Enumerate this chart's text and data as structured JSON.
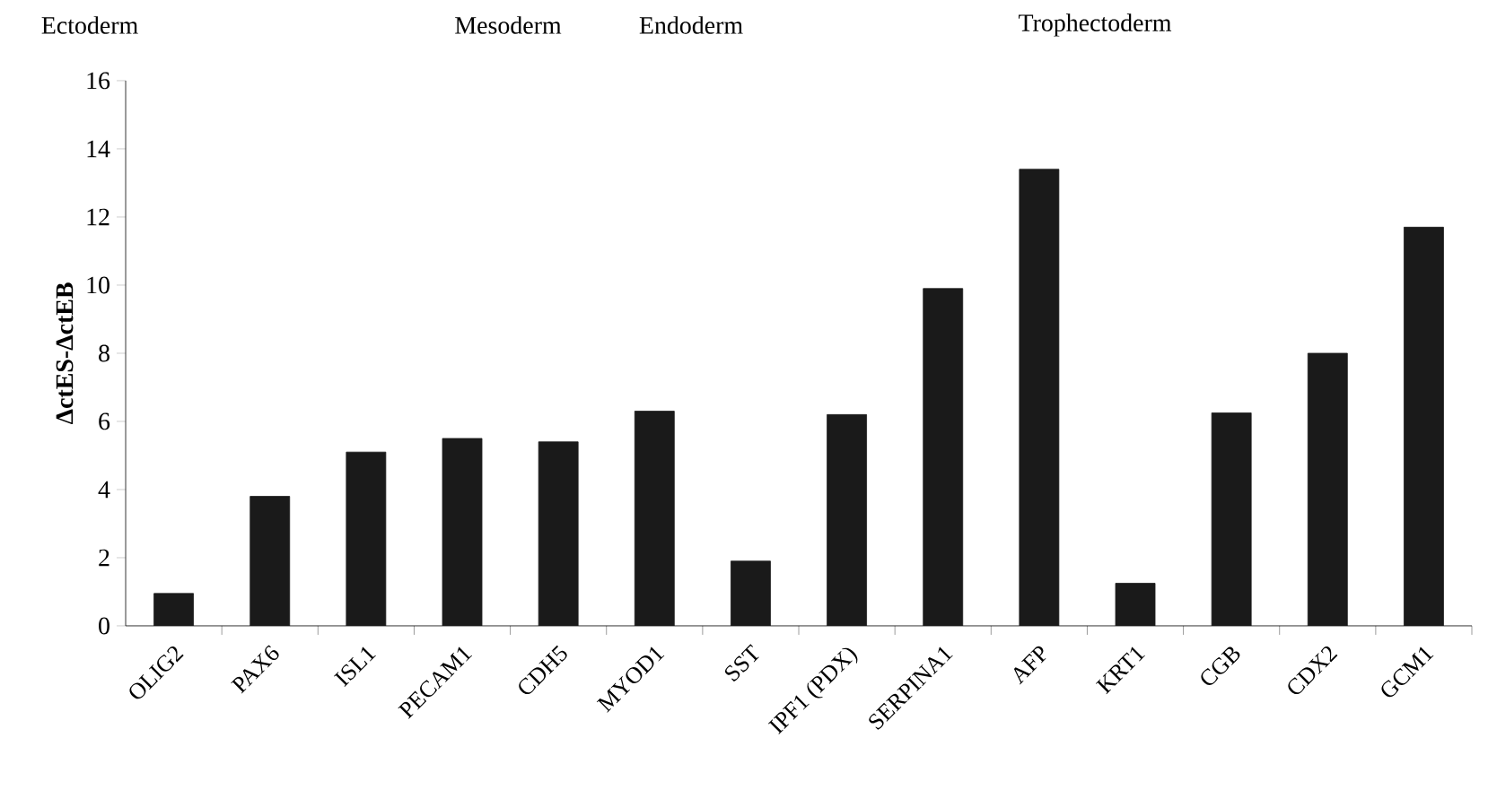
{
  "chart_data": {
    "type": "bar",
    "ylabel": "ΔctES-ΔctEB",
    "categories": [
      "OLIG2",
      "PAX6",
      "ISL1",
      "PECAM1",
      "CDH5",
      "MYOD1",
      "SST",
      "IPF1 (PDX)",
      "SERPINA1",
      "AFP",
      "KRT1",
      "CGB",
      "CDX2",
      "GCM1"
    ],
    "values": [
      0.95,
      3.8,
      5.1,
      5.5,
      5.4,
      6.3,
      1.9,
      6.2,
      9.9,
      13.4,
      1.25,
      6.25,
      8.0,
      11.7
    ],
    "color": "#1a1a1a",
    "ylim": [
      0,
      16
    ],
    "yticks": [
      0,
      2,
      4,
      6,
      8,
      10,
      12,
      14,
      16
    ],
    "grid": false,
    "annotations": [
      "Ectoderm",
      "Mesoderm",
      "Endoderm",
      "Trophectoderm"
    ]
  }
}
